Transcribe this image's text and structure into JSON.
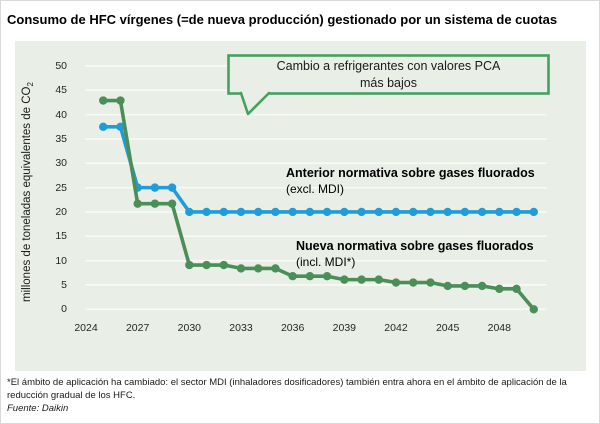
{
  "title": "Consumo de HFC vírgenes (=de nueva producción) gestionado por un sistema de cuotas",
  "y_axis": {
    "label_main": "millones de toneladas equivalentes de CO",
    "label_sub": "2"
  },
  "callout": {
    "line1": "Cambio a refrigerantes con valores PCA",
    "line2": "más bajos"
  },
  "series_labels": {
    "old": {
      "bold": "Anterior normativa sobre gases fluorados",
      "sub": "(excl. MDI)"
    },
    "new": {
      "bold": "Nueva normativa sobre gases fluorados",
      "sub": "(incl. MDI*)"
    }
  },
  "footnote": {
    "line1": "*El ámbito de aplicación ha cambiado: el sector MDI (inhaladores dosificadores) también entra ahora en el ámbito de aplicación de la",
    "line2": "reducción gradual de los HFC.",
    "source": "Fuente: Daikin"
  },
  "colors": {
    "old_series": "#219cd8",
    "new_series": "#4b8e58",
    "panel_bg": "#e9efe7",
    "gridline": "#f8fbf5",
    "callout_border": "#46a05e"
  },
  "chart_data": {
    "type": "line",
    "title": "Consumo de HFC vírgenes (=de nueva producción) gestionado por un sistema de cuotas",
    "xlabel": "",
    "ylabel": "millones de toneladas equivalentes de CO2",
    "ylim": [
      0,
      50
    ],
    "yticks": [
      0,
      5,
      10,
      15,
      20,
      25,
      30,
      35,
      40,
      45,
      50
    ],
    "xtick_labels": [
      2024,
      2027,
      2030,
      2033,
      2036,
      2039,
      2042,
      2045,
      2048
    ],
    "grid": true,
    "legend_position": "inline annotations on chart",
    "annotation": "Cambio a refrigerantes con valores PCA más bajos",
    "x": [
      2025,
      2026,
      2027,
      2028,
      2029,
      2030,
      2031,
      2032,
      2033,
      2034,
      2035,
      2036,
      2037,
      2038,
      2039,
      2040,
      2041,
      2042,
      2043,
      2044,
      2045,
      2046,
      2047,
      2048,
      2049,
      2050
    ],
    "series": [
      {
        "name": "Anterior normativa sobre gases fluorados (excl. MDI)",
        "color": "#219cd8",
        "values": [
          37.5,
          37.5,
          25,
          25,
          25,
          20,
          20,
          20,
          20,
          20,
          20,
          20,
          20,
          20,
          20,
          20,
          20,
          20,
          20,
          20,
          20,
          20,
          20,
          20,
          20,
          20
        ]
      },
      {
        "name": "Nueva normativa sobre gases fluorados (incl. MDI*)",
        "color": "#4b8e58",
        "values": [
          42.9,
          42.9,
          21.7,
          21.7,
          21.7,
          9.1,
          9.1,
          9.1,
          8.4,
          8.4,
          8.4,
          6.8,
          6.8,
          6.8,
          6.1,
          6.1,
          6.1,
          5.5,
          5.5,
          5.5,
          4.8,
          4.8,
          4.8,
          4.2,
          4.2,
          0
        ]
      }
    ]
  }
}
